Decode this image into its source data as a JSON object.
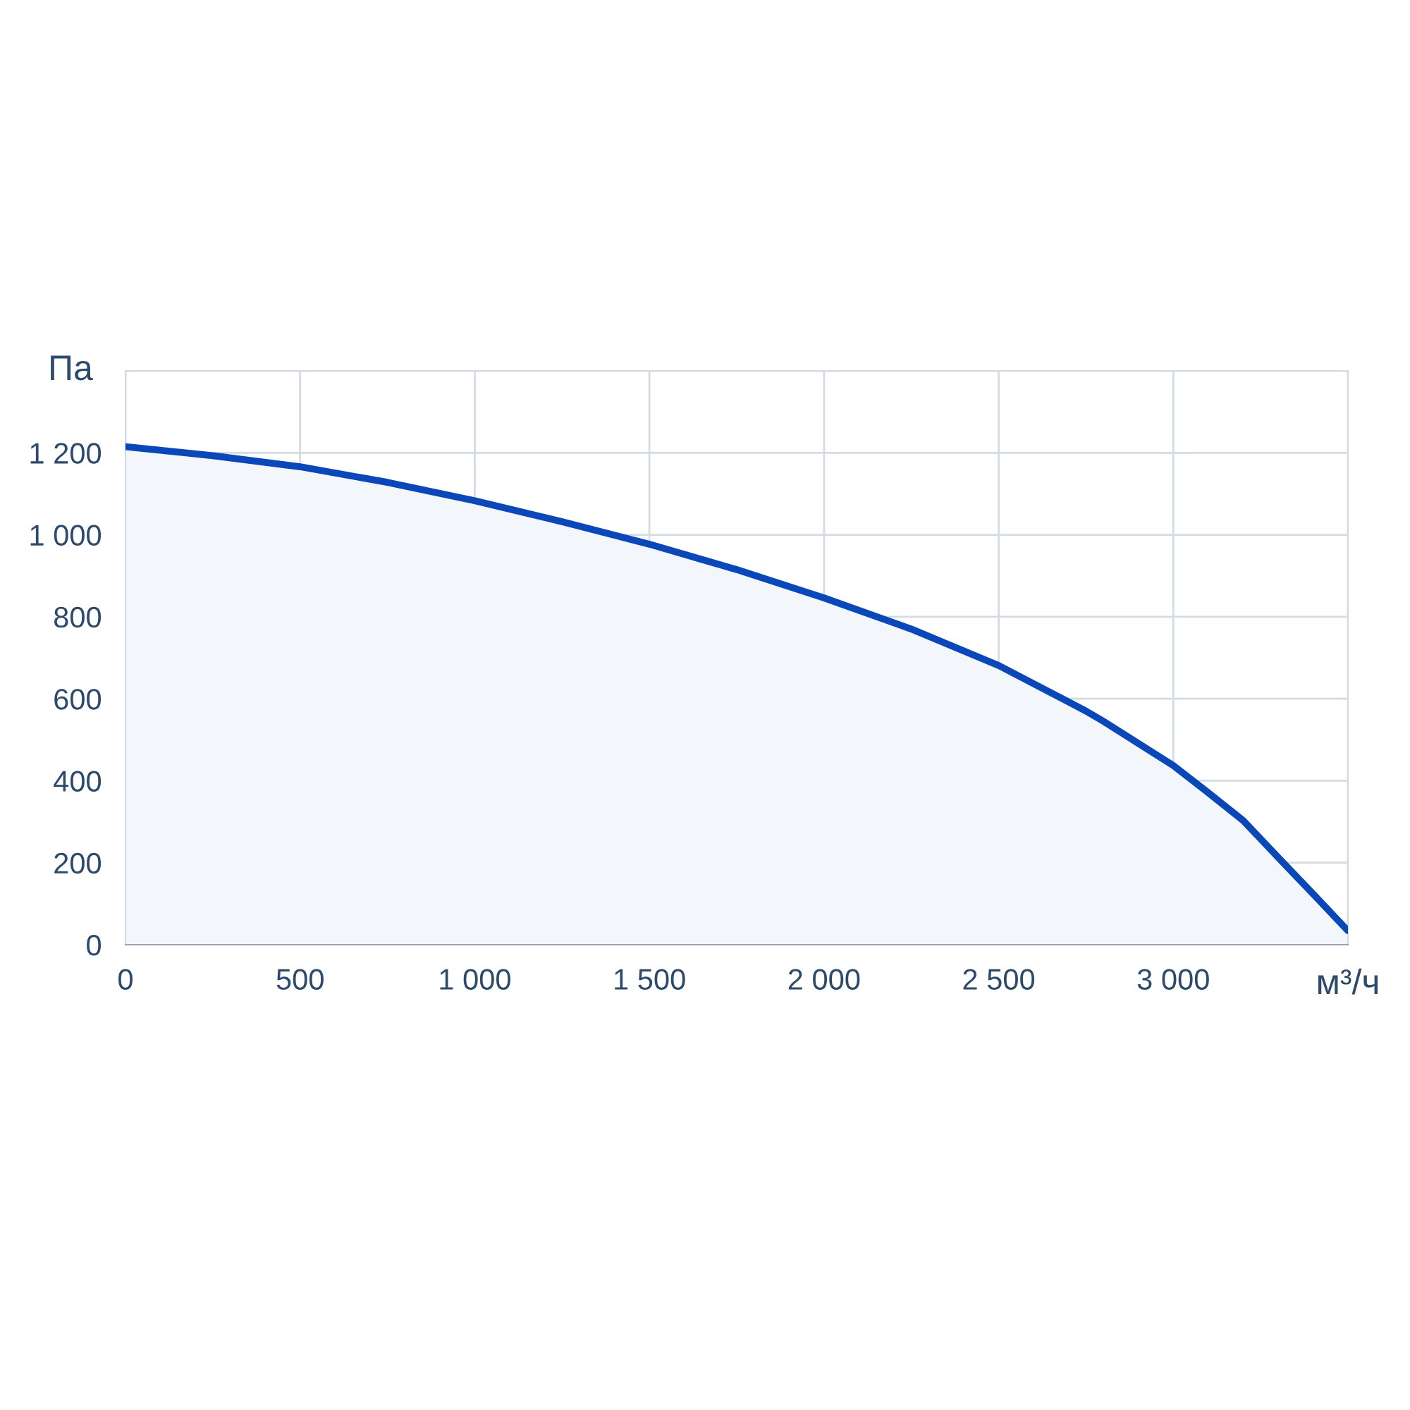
{
  "chart_data": {
    "type": "area",
    "xlabel": "м³/ч",
    "ylabel": "Па",
    "x": [
      0,
      250,
      500,
      750,
      1000,
      1250,
      1500,
      1750,
      2000,
      2250,
      2500,
      2750,
      2800,
      3000,
      3100,
      3200,
      3300,
      3400,
      3500
    ],
    "series": [
      {
        "color": "#0a47b8",
        "values": [
          1215,
          1193,
          1166,
          1128,
          1083,
          1032,
          977,
          915,
          846,
          770,
          681,
          570,
          545,
          437,
          371,
          303,
          213,
          124,
          34
        ]
      }
    ],
    "xlim": [
      0,
      3500
    ],
    "xticks": [
      {
        "value": 0,
        "label": "0"
      },
      {
        "value": 500,
        "label": "500"
      },
      {
        "value": 1000,
        "label": "1 000"
      },
      {
        "value": 1500,
        "label": "1 500"
      },
      {
        "value": 2000,
        "label": "2 000"
      },
      {
        "value": 2500,
        "label": "2 500"
      },
      {
        "value": 3000,
        "label": "3 000"
      },
      {
        "value": 3500,
        "label": null
      }
    ],
    "ylim": [
      0,
      1400
    ],
    "yticks": [
      {
        "value": 0,
        "label": "0"
      },
      {
        "value": 200,
        "label": "200"
      },
      {
        "value": 400,
        "label": "400"
      },
      {
        "value": 600,
        "label": "600"
      },
      {
        "value": 800,
        "label": "800"
      },
      {
        "value": 1000,
        "label": "1 000"
      },
      {
        "value": 1200,
        "label": "1 200"
      },
      {
        "value": 1400,
        "label": null
      }
    ],
    "grid": true,
    "legend": false
  }
}
